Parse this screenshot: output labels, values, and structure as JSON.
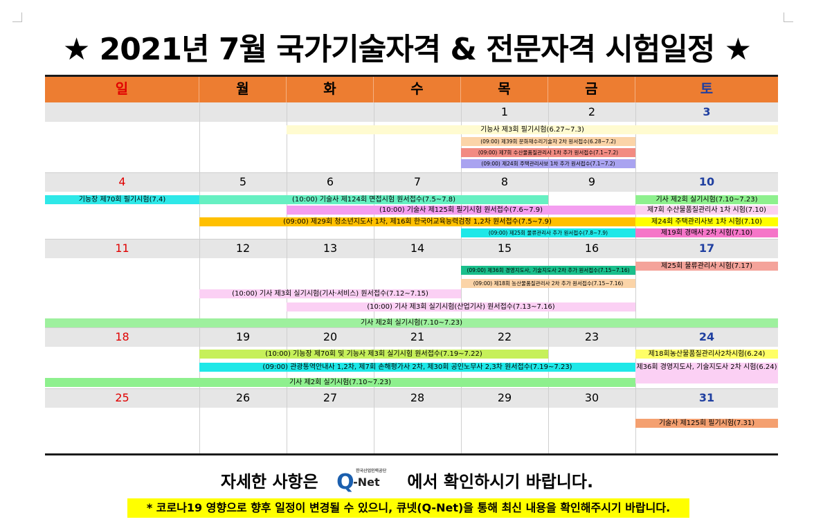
{
  "title": "★ 2021년 7월 국가기술자격 & 전문자격 시험일정 ★",
  "weekdays": [
    "일",
    "월",
    "화",
    "수",
    "목",
    "금",
    "토"
  ],
  "weeks": [
    [
      "",
      "",
      "",
      "",
      "1",
      "2",
      "3"
    ],
    [
      "4",
      "5",
      "6",
      "7",
      "8",
      "9",
      "10"
    ],
    [
      "11",
      "12",
      "13",
      "14",
      "15",
      "16",
      "17"
    ],
    [
      "18",
      "19",
      "20",
      "21",
      "22",
      "23",
      "24"
    ],
    [
      "25",
      "26",
      "27",
      "28",
      "29",
      "30",
      "31"
    ]
  ],
  "events": [
    {
      "text": "기능사 제3회 필기시험(6.27~7.3)",
      "color": "#fffbd0"
    },
    {
      "text": "(09:00) 제39회 문화재수리기술자 2차 원서접수(6.28~7.2)",
      "color": "#fbd4a8"
    },
    {
      "text": "(09:00) 제7회 수산물품질관리사 1차 추가 원서접수(7.1~7.2)",
      "color": "#f28b82"
    },
    {
      "text": "(09:00) 제24회 주택관리사보 1차 추가 원서접수(7.1~7.2)",
      "color": "#a9a3f0"
    },
    {
      "text": "기능장 제70회 필기시험(7.4)",
      "color": "#2ee8e8"
    },
    {
      "text": "(10:00) 기술사 제124회 면접시험 원서접수(7.5~7.8)",
      "color": "#66f0c2"
    },
    {
      "text": "기사 제2회 실기시험(7.10~7.23)",
      "color": "#8ef08e"
    },
    {
      "text": "(10:00) 기술사 제125회 필기시험 원서접수(7.6~7.9)",
      "color": "#f49ef0"
    },
    {
      "text": "제7회 수산물품질관리사 1차 시험(7.10)",
      "color": "#fbd0f0"
    },
    {
      "text": "(09:00) 제29회 청소년지도사 1차, 제16회 한국어교육능력검정 1,2차 원서접수(7.5~7.9)",
      "color": "#ffc000"
    },
    {
      "text": "제24회 주택관리사보 1차 시험(7.10)",
      "color": "#ffff00"
    },
    {
      "text": "(09:00) 제25회 물류관리사 추가 원서접수(7.8~7.9)",
      "color": "#1ee8e8"
    },
    {
      "text": "제19회 경매사 2차 시험(7.10)",
      "color": "#f575c8"
    },
    {
      "text": "(09:00) 제36회 경영지도사, 기술지도사 2차 추가 원서접수(7.15~7.16)",
      "color": "#1abf8c"
    },
    {
      "text": "제25회 물류관리사 시험(7.17)",
      "color": "#f4a39a"
    },
    {
      "text": "(09:00) 제18회 농산물품질관리사 2차 추가 원서접수(7.15~7.16)",
      "color": "#fbd4a8"
    },
    {
      "text": "(10:00) 기사 제3회 실기시험(기사·서비스) 원서접수(7.12~7.15)",
      "color": "#fbd0f4"
    },
    {
      "text": "(10:00) 기사 제3회 실기시험(산업기사) 원서접수(7.13~7.16)",
      "color": "#fbd0f4"
    },
    {
      "text": "기사 제2회 실기시험(7.10~7.23)",
      "color": "#9ef09e"
    },
    {
      "text": "(10:00) 기능장 제70회 및 기능사 제3회 실기시험 원서접수(7.19~7.22)",
      "color": "#c6f05a"
    },
    {
      "text": "제18회농산물품질관리사2차시험(6.24)",
      "color": "#ffff66"
    },
    {
      "text": "(09:00) 관광통역안내사 1,2차, 제7회 손해평가사 2차, 제30회 공인노무사 2,3차 원서접수(7.19~7.23)",
      "color": "#1ee8e8"
    },
    {
      "text": "제36회 경영지도사, 기술지도사 2차 시험(6.24)",
      "color": "#fbd0f4"
    },
    {
      "text": "기사 제2회 실기시험(7.10~7.23)",
      "color": "#8ef08e"
    },
    {
      "text": "기술사 제125회 필기시험(7.31)",
      "color": "#f4a070"
    }
  ],
  "footer": {
    "before_logo": "자세한 사항은",
    "logo_q": "Q",
    "logo_net": "-Net",
    "logo_tiny": "한국산업인력공단",
    "after_logo": "에서 확인하시기 바랍니다."
  },
  "notice": "* 코로나19 영향으로 향후 일정이 변경될 수 있으니, 큐넷(Q-Net)을 통해 최신 내용을 확인해주시기 바랍니다."
}
